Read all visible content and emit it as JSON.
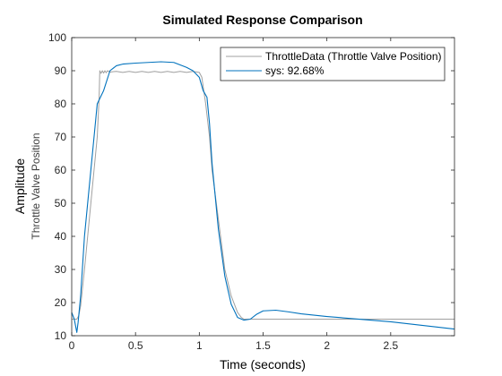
{
  "chart_data": {
    "type": "line",
    "title": "Simulated Response Comparison",
    "xlabel": "Time (seconds)",
    "ylabel": "Amplitude",
    "ylabel_sub": "Throttle Valve Position",
    "xlim": [
      0,
      3
    ],
    "ylim": [
      10,
      100
    ],
    "xticks": [
      0,
      0.5,
      1,
      1.5,
      2,
      2.5
    ],
    "xtick_labels": [
      "0",
      "0.5",
      "1",
      "1.5",
      "2",
      "2.5"
    ],
    "yticks": [
      10,
      20,
      30,
      40,
      50,
      60,
      70,
      80,
      90,
      100
    ],
    "ytick_labels": [
      "10",
      "20",
      "30",
      "40",
      "50",
      "60",
      "70",
      "80",
      "90",
      "100"
    ],
    "grid": false,
    "legend_position": "top-right",
    "series": [
      {
        "name": "ThrottleData (Throttle Valve Position)",
        "color": "#a0a0a0",
        "x": [
          0,
          0.04,
          0.055,
          0.07,
          0.1,
          0.15,
          0.2,
          0.215,
          0.22,
          0.23,
          0.24,
          0.25,
          0.26,
          0.27,
          0.28,
          0.3,
          0.35,
          0.4,
          0.45,
          0.5,
          0.55,
          0.6,
          0.65,
          0.7,
          0.75,
          0.8,
          0.85,
          0.9,
          0.95,
          1.0,
          1.02,
          1.05,
          1.08,
          1.1,
          1.15,
          1.2,
          1.25,
          1.3,
          1.33,
          1.35,
          1.4,
          1.5,
          2.0,
          2.5,
          3.0
        ],
        "y": [
          15,
          15,
          16,
          19,
          30,
          50,
          70,
          82,
          90,
          89.2,
          90,
          89.3,
          90,
          89.4,
          90,
          89.6,
          89.8,
          89.5,
          89.8,
          89.5,
          89.8,
          89.5,
          89.8,
          89.5,
          89.8,
          89.5,
          89.8,
          89.5,
          89.8,
          89.5,
          88,
          80,
          70,
          60,
          45,
          30,
          22,
          17,
          15.5,
          15,
          15,
          15,
          15,
          15,
          15
        ]
      },
      {
        "name": "sys: 92.68%",
        "color": "#0072bd",
        "x": [
          0,
          0.02,
          0.03,
          0.04,
          0.05,
          0.07,
          0.1,
          0.15,
          0.2,
          0.25,
          0.3,
          0.35,
          0.4,
          0.5,
          0.6,
          0.7,
          0.8,
          0.9,
          0.95,
          1.0,
          1.03,
          1.06,
          1.08,
          1.1,
          1.15,
          1.2,
          1.25,
          1.3,
          1.35,
          1.4,
          1.45,
          1.5,
          1.6,
          1.7,
          1.8,
          2.0,
          2.5,
          3.0
        ],
        "y": [
          17,
          15,
          13,
          11,
          14,
          22,
          40,
          60,
          80,
          84,
          90,
          91.5,
          92,
          92.3,
          92.5,
          92.7,
          92.5,
          91,
          90,
          88,
          84,
          82,
          74,
          62,
          42,
          28,
          19.5,
          15.5,
          14.7,
          15,
          16.5,
          17.5,
          17.7,
          17.2,
          16.6,
          15.8,
          14.2,
          12
        ]
      }
    ]
  }
}
